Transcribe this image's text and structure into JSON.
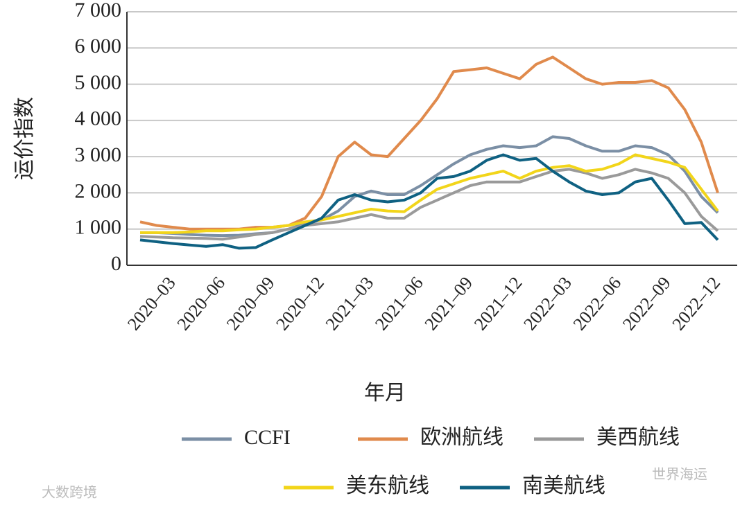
{
  "chart_data": {
    "type": "line",
    "xlabel": "年月",
    "ylabel": "运价指数",
    "categories": [
      null,
      null,
      "2020–03",
      null,
      null,
      "2020–06",
      null,
      null,
      "2020–09",
      null,
      null,
      "2020–12",
      null,
      null,
      "2021–03",
      null,
      null,
      "2021–06",
      null,
      null,
      "2021–09",
      null,
      null,
      "2021–12",
      null,
      null,
      "2022–03",
      null,
      null,
      "2022–06",
      null,
      null,
      "2022–09",
      null,
      null,
      "2022–12"
    ],
    "ylim": [
      0,
      7000
    ],
    "yticks": [
      0,
      {
        "value": 1000,
        "label": "1 000"
      },
      {
        "value": 2000,
        "label": "2 000"
      },
      {
        "value": 3000,
        "label": "3 000"
      },
      {
        "value": 4000,
        "label": "4 000"
      },
      {
        "value": 5000,
        "label": "5 000"
      },
      {
        "value": 6000,
        "label": "6 000"
      },
      {
        "value": 7000,
        "label": "7 000"
      }
    ],
    "grid": true,
    "series": [
      {
        "name": "CCFI",
        "color": "#7b8fa5",
        "values": [
          900,
          900,
          880,
          850,
          830,
          820,
          830,
          870,
          900,
          1000,
          1150,
          1250,
          1500,
          1900,
          2050,
          1950,
          1950,
          2200,
          2500,
          2800,
          3050,
          3200,
          3300,
          3250,
          3300,
          3550,
          3500,
          3300,
          3150,
          3150,
          3300,
          3250,
          3050,
          2600,
          1900,
          1450
        ]
      },
      {
        "name": "欧洲航线",
        "color": "#e08a4c",
        "values": [
          1200,
          1100,
          1050,
          1000,
          1000,
          1000,
          1000,
          1050,
          1050,
          1100,
          1300,
          1900,
          3000,
          3400,
          3050,
          3000,
          3500,
          4000,
          4600,
          5350,
          5400,
          5450,
          5300,
          5150,
          5550,
          5750,
          5450,
          5150,
          5000,
          5050,
          5050,
          5100,
          4900,
          4300,
          3400,
          2000
        ]
      },
      {
        "name": "美西航线",
        "color": "#9a9a9a",
        "values": [
          800,
          780,
          760,
          750,
          740,
          720,
          780,
          850,
          900,
          1000,
          1100,
          1150,
          1200,
          1300,
          1400,
          1300,
          1300,
          1600,
          1800,
          2000,
          2200,
          2300,
          2300,
          2300,
          2450,
          2600,
          2650,
          2550,
          2400,
          2500,
          2650,
          2550,
          2400,
          2000,
          1350,
          950
        ]
      },
      {
        "name": "美东航线",
        "color": "#f2d51a",
        "values": [
          900,
          900,
          900,
          920,
          950,
          950,
          980,
          1000,
          1050,
          1100,
          1200,
          1250,
          1350,
          1450,
          1550,
          1500,
          1480,
          1800,
          2100,
          2250,
          2400,
          2500,
          2600,
          2400,
          2600,
          2700,
          2750,
          2600,
          2650,
          2800,
          3050,
          2950,
          2850,
          2700,
          2100,
          1500
        ]
      },
      {
        "name": "南美航线",
        "color": "#0f6182",
        "values": [
          700,
          650,
          600,
          560,
          520,
          570,
          470,
          490,
          700,
          900,
          1100,
          1300,
          1800,
          1950,
          1800,
          1750,
          1800,
          2000,
          2400,
          2450,
          2600,
          2900,
          3050,
          2900,
          2950,
          2600,
          2300,
          2050,
          1950,
          2000,
          2300,
          2400,
          1800,
          1150,
          1180,
          700
        ]
      }
    ],
    "watermarks": [
      "大数跨境",
      "世界海运"
    ]
  }
}
